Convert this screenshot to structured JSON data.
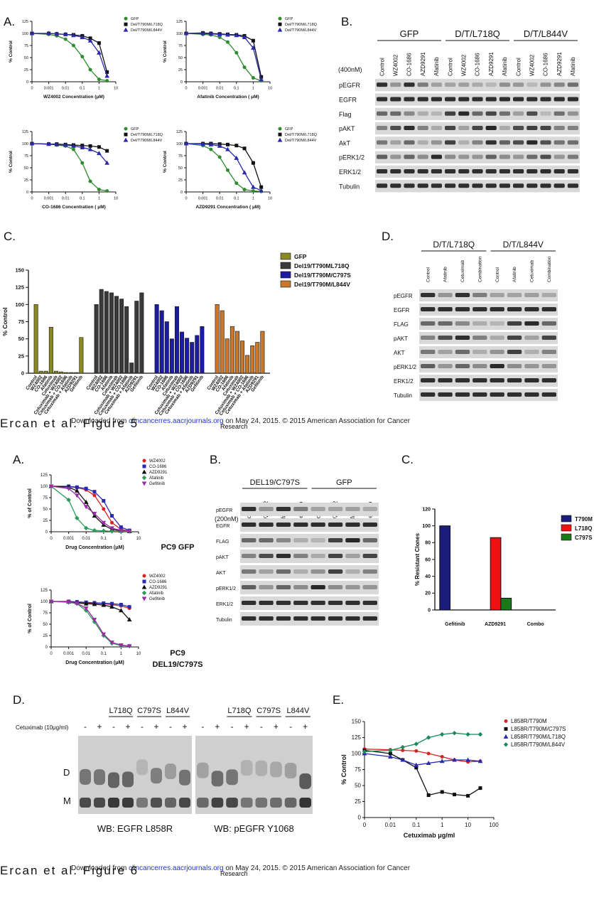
{
  "figure5": {
    "panel_labels": [
      "A.",
      "B.",
      "C.",
      "D."
    ],
    "dose_charts": [
      {
        "type": "line",
        "xlabel": "WZ4002 Concentration (μM)",
        "ylabel": "% Control",
        "log_x": true,
        "x": [
          0,
          0.001,
          0.003,
          0.01,
          0.03,
          0.1,
          0.3,
          1,
          3
        ],
        "xlim": [
          0,
          10
        ],
        "xticks": [
          0,
          0.001,
          0.01,
          0.1,
          1,
          10
        ],
        "ylim": [
          0,
          125
        ],
        "yticks": [
          0,
          25,
          50,
          75,
          100,
          125
        ],
        "series": [
          {
            "name": "GFP",
            "color": "#2e8b2e",
            "values": [
              100,
              98,
              95,
              88,
              75,
              52,
              25,
              5,
              2
            ]
          },
          {
            "name": "Del/T790M/L718Q",
            "color": "#111111",
            "values": [
              100,
              100,
              99,
              98,
              97,
              95,
              90,
              80,
              20
            ]
          },
          {
            "name": "Del/T790M/L844V",
            "color": "#2a2aa8",
            "values": [
              100,
              100,
              99,
              98,
              96,
              92,
              85,
              60,
              12
            ]
          }
        ]
      },
      {
        "type": "line",
        "xlabel": "Afatinib Concentration ( μM)",
        "ylabel": "% Control",
        "log_x": true,
        "x": [
          0,
          0.001,
          0.003,
          0.01,
          0.03,
          0.1,
          0.3,
          1,
          3
        ],
        "xlim": [
          0,
          10
        ],
        "xticks": [
          0,
          0.001,
          0.01,
          0.1,
          1,
          10
        ],
        "ylim": [
          0,
          125
        ],
        "yticks": [
          0,
          25,
          50,
          75,
          100,
          125
        ],
        "series": [
          {
            "name": "GFP",
            "color": "#2e8b2e",
            "values": [
              100,
              98,
              97,
              92,
              82,
              60,
              30,
              8,
              2
            ]
          },
          {
            "name": "Del/T790M/L718Q",
            "color": "#111111",
            "values": [
              100,
              101,
              100,
              99,
              98,
              97,
              95,
              85,
              10
            ]
          },
          {
            "name": "Del/T790M/L844V",
            "color": "#2a2aa8",
            "values": [
              100,
              100,
              99,
              98,
              97,
              96,
              92,
              70,
              5
            ]
          }
        ]
      },
      {
        "type": "line",
        "xlabel": "CO-1686 Concentration ( μM)",
        "ylabel": "% Control",
        "log_x": true,
        "x": [
          0,
          0.001,
          0.003,
          0.01,
          0.03,
          0.1,
          0.3,
          1,
          3
        ],
        "xlim": [
          0,
          10
        ],
        "xticks": [
          0,
          0.001,
          0.01,
          0.1,
          1,
          10
        ],
        "ylim": [
          0,
          125
        ],
        "yticks": [
          0,
          25,
          50,
          75,
          100,
          125
        ],
        "series": [
          {
            "name": "GFP",
            "color": "#2e8b2e",
            "values": [
              100,
              99,
              97,
              95,
              88,
              60,
              22,
              5,
              2
            ]
          },
          {
            "name": "Del/T790M/L718Q",
            "color": "#111111",
            "values": [
              100,
              99,
              99,
              98,
              97,
              96,
              95,
              93,
              85
            ]
          },
          {
            "name": "Del/T790M/L844V",
            "color": "#2a2aa8",
            "values": [
              100,
              99,
              98,
              97,
              95,
              92,
              88,
              80,
              60
            ]
          }
        ]
      },
      {
        "type": "line",
        "xlabel": "AZD9291 Concentration ( μM)",
        "ylabel": "% Control",
        "log_x": true,
        "x": [
          0,
          0.001,
          0.003,
          0.01,
          0.03,
          0.1,
          0.3,
          1,
          3
        ],
        "xlim": [
          0,
          10
        ],
        "xticks": [
          0,
          0.001,
          0.01,
          0.1,
          1,
          10
        ],
        "ylim": [
          0,
          125
        ],
        "yticks": [
          0,
          25,
          50,
          75,
          100,
          125
        ],
        "series": [
          {
            "name": "GFP",
            "color": "#2e8b2e",
            "values": [
              100,
              96,
              88,
              72,
              45,
              18,
              5,
              2,
              1
            ]
          },
          {
            "name": "Del/T790M/L718Q",
            "color": "#111111",
            "values": [
              100,
              100,
              100,
              99,
              98,
              96,
              90,
              60,
              10
            ]
          },
          {
            "name": "Del/T790M/L844V",
            "color": "#2a2aa8",
            "values": [
              100,
              99,
              98,
              95,
              88,
              70,
              40,
              10,
              3
            ]
          }
        ]
      }
    ],
    "blot_b": {
      "treatment": "(400nM)",
      "groups": [
        {
          "name": "GFP",
          "lanes": [
            "Control",
            "WZ4002",
            "CO-1686",
            "AZD9291",
            "Afatinib"
          ]
        },
        {
          "name": "D/T/L718Q",
          "lanes": [
            "Control",
            "WZ4002",
            "CO-1686",
            "AZD9291",
            "Afatinib"
          ]
        },
        {
          "name": "D/T/L844V",
          "lanes": [
            "Control",
            "WZ4002",
            "CO-1686",
            "AZD9291",
            "Afatinib"
          ]
        }
      ],
      "rows": [
        "pEGFR",
        "EGFR",
        "Flag",
        "pAKT",
        "AkT",
        "pERK1/2",
        "ERK1/2",
        "Tubulin"
      ]
    },
    "bar_chart": {
      "type": "bar",
      "ylabel": "% Control",
      "ylim": [
        0,
        150
      ],
      "yticks": [
        0,
        25,
        50,
        75,
        100,
        125,
        150
      ],
      "categories": [
        "Control",
        "WZ4002",
        "CO-1686",
        "Afatinib",
        "Cetuximab",
        "Cetuximab + WZ4002",
        "Cetuximab + CO-1686",
        "Cetuximab + Afatinib",
        "AZD9291",
        "Gefitinib"
      ],
      "series": [
        {
          "name": "GFP",
          "color": "#8a8a25",
          "values": [
            100,
            3,
            3,
            67,
            3,
            2,
            1,
            1,
            1,
            52
          ]
        },
        {
          "name": "Del19/T790ML718Q",
          "color": "#3a3a3a",
          "values": [
            100,
            122,
            119,
            117,
            112,
            108,
            97,
            15,
            105,
            117
          ]
        },
        {
          "name": "Del19/T790M/C797S",
          "color": "#1c1ca0",
          "values": [
            100,
            91,
            75,
            50,
            97,
            60,
            51,
            45,
            55,
            68
          ]
        },
        {
          "name": "Del19/T790M/L844V",
          "color": "#c8782c",
          "values": [
            100,
            91,
            50,
            68,
            61,
            47,
            26,
            40,
            45,
            61
          ]
        }
      ]
    },
    "blot_d": {
      "groups": [
        {
          "name": "D/T/L718Q",
          "lanes": [
            "Control",
            "Afatinib",
            "Cetuximab",
            "Combination"
          ]
        },
        {
          "name": "D/T/L844V",
          "lanes": [
            "Control",
            "Afatinib",
            "Cetuximab",
            "Combination"
          ]
        }
      ],
      "rows": [
        "pEGFR",
        "EGFR",
        "FLAG",
        "pAKT",
        "AKT",
        "pERK1/2",
        "ERK1/2",
        "Tubulin"
      ]
    },
    "footer": {
      "prefix": "Downloaded from ",
      "link": "clincancerres.aacrjournals.org",
      "suffix": " on May 24, 2015. © 2015 American Association for Cancer",
      "cut": "Research"
    },
    "figure_label": "Ercan et al. Figure 5"
  },
  "figure6": {
    "panel_labels": [
      "A.",
      "B.",
      "C.",
      "D.",
      "E."
    ],
    "dose_charts": [
      {
        "type": "line",
        "xlabel": "Drug Concentration (μM)",
        "ylabel": "% of Control",
        "log_x": true,
        "label": [
          "PC9 GFP"
        ],
        "x": [
          0,
          0.001,
          0.003,
          0.01,
          0.03,
          0.1,
          0.3,
          1,
          3
        ],
        "xlim": [
          0,
          10
        ],
        "xticks": [
          0,
          0.001,
          0.01,
          0.1,
          1,
          10
        ],
        "ylim": [
          0,
          125
        ],
        "yticks": [
          0,
          25,
          50,
          75,
          100,
          125
        ],
        "series": [
          {
            "name": "WZ4002",
            "color": "#e02020",
            "values": [
              100,
              99,
              97,
              92,
              80,
              50,
              20,
              5,
              2
            ]
          },
          {
            "name": "CO-1686",
            "color": "#2a2ab0",
            "values": [
              100,
              100,
              98,
              95,
              88,
              68,
              35,
              10,
              3
            ]
          },
          {
            "name": "AZD9291",
            "color": "#111111",
            "values": [
              100,
              98,
              90,
              65,
              35,
              15,
              5,
              2,
              1
            ]
          },
          {
            "name": "Afatinib",
            "color": "#2e9a5a",
            "values": [
              100,
              70,
              30,
              8,
              3,
              2,
              1,
              1,
              1
            ]
          },
          {
            "name": "Gefitinib",
            "color": "#9a2aa8",
            "values": [
              100,
              95,
              80,
              55,
              40,
              20,
              8,
              3,
              1
            ]
          }
        ]
      },
      {
        "type": "line",
        "xlabel": "Drug Concentration (μM)",
        "ylabel": "% of Control",
        "log_x": true,
        "label": [
          "PC9",
          "DEL19/C797S"
        ],
        "x": [
          0,
          0.001,
          0.003,
          0.01,
          0.03,
          0.1,
          0.3,
          1,
          3
        ],
        "xlim": [
          0,
          10
        ],
        "xticks": [
          0,
          0.001,
          0.01,
          0.1,
          1,
          10
        ],
        "ylim": [
          0,
          125
        ],
        "yticks": [
          0,
          25,
          50,
          75,
          100,
          125
        ],
        "series": [
          {
            "name": "WZ4002",
            "color": "#e02020",
            "values": [
              100,
              99,
              98,
              97,
              96,
              95,
              93,
              90,
              85
            ]
          },
          {
            "name": "CO-1686",
            "color": "#2a2ab0",
            "values": [
              100,
              100,
              99,
              98,
              97,
              96,
              95,
              93,
              88
            ]
          },
          {
            "name": "AZD9291",
            "color": "#111111",
            "values": [
              100,
              99,
              97,
              95,
              94,
              92,
              88,
              80,
              60
            ]
          },
          {
            "name": "Afatinib",
            "color": "#2e9a5a",
            "values": [
              100,
              98,
              95,
              80,
              55,
              25,
              8,
              3,
              2
            ]
          },
          {
            "name": "Gefitinib",
            "color": "#9a2aa8",
            "values": [
              100,
              99,
              96,
              85,
              60,
              28,
              10,
              4,
              2
            ]
          }
        ]
      }
    ],
    "blot_b": {
      "treatment": "(200nM)",
      "groups": [
        {
          "name": "DEL19/C797S",
          "lanes": [
            "Control",
            "WZ4002",
            "Afatinib",
            "Gefitinib"
          ]
        },
        {
          "name": "GFP",
          "lanes": [
            "Control",
            "WZ4002",
            "Afatinib",
            "Gefitinib"
          ]
        }
      ],
      "rows": [
        "pEGFR",
        "EGFR",
        "FLAG",
        "pAKT",
        "AKT",
        "pERK1/2",
        "ERK1/2",
        "Tubulin"
      ]
    },
    "bar_chart": {
      "type": "bar",
      "ylabel": "% Resistant Clones",
      "ylim": [
        0,
        120
      ],
      "yticks": [
        0,
        20,
        40,
        60,
        80,
        100,
        120
      ],
      "categories": [
        "Gefitinib",
        "AZD9291",
        "Combo"
      ],
      "series": [
        {
          "name": "T790M",
          "color": "#1c1c7c",
          "values": [
            100,
            null,
            null
          ]
        },
        {
          "name": "L718Q",
          "color": "#ee1111",
          "values": [
            null,
            86,
            null
          ]
        },
        {
          "name": "C797S",
          "color": "#1a7a1a",
          "values": [
            null,
            14,
            null
          ]
        }
      ]
    },
    "gel": {
      "treatment": "Cetuximab (10μg/ml)",
      "bands": [
        "D",
        "M"
      ],
      "panels": [
        {
          "caption": "WB: EGFR L858R",
          "groups": [
            "L718Q",
            "C797S",
            "L844V"
          ],
          "signs": [
            "-",
            "+",
            "-",
            "+",
            "-",
            "+",
            "-",
            "+"
          ]
        },
        {
          "caption": "WB: pEGFR Y1068",
          "groups": [
            "L718Q",
            "C797S",
            "L844V"
          ],
          "signs": [
            "-",
            "+",
            "-",
            "+",
            "-",
            "+",
            "-",
            "+"
          ]
        }
      ]
    },
    "cetuximab_chart": {
      "type": "line",
      "xlabel": "Cetuximab μg/ml",
      "ylabel": "% Control",
      "log_x": true,
      "x": [
        0,
        0.01,
        0.03,
        0.1,
        0.3,
        1,
        3,
        10,
        30
      ],
      "xlim": [
        0,
        100
      ],
      "xticks": [
        0,
        0.01,
        0.1,
        1,
        10,
        100
      ],
      "ylim": [
        0,
        150
      ],
      "yticks": [
        0,
        25,
        50,
        75,
        100,
        125,
        150
      ],
      "series": [
        {
          "name": "L858R/T790M",
          "color": "#e02020",
          "values": [
            107,
            106,
            105,
            104,
            100,
            95,
            90,
            87,
            88
          ]
        },
        {
          "name": "L858R/T790M/C797S",
          "color": "#111111",
          "values": [
            105,
            100,
            90,
            78,
            35,
            40,
            36,
            34,
            46
          ]
        },
        {
          "name": "L858R/T790M/L718Q",
          "color": "#2a2ab0",
          "values": [
            100,
            95,
            90,
            82,
            85,
            88,
            90,
            90,
            88
          ]
        },
        {
          "name": "L858R/T790M/L844V",
          "color": "#1a8a5a",
          "values": [
            103,
            105,
            110,
            115,
            125,
            130,
            132,
            130,
            130
          ]
        }
      ]
    },
    "footer": {
      "prefix": "Downloaded from ",
      "link": "clincancerres.aacrjournals.org",
      "suffix": " on May 24, 2015. © 2015 American Association for Cancer",
      "cut": "Research"
    },
    "figure_label": "Ercan et al. Figure 6"
  }
}
